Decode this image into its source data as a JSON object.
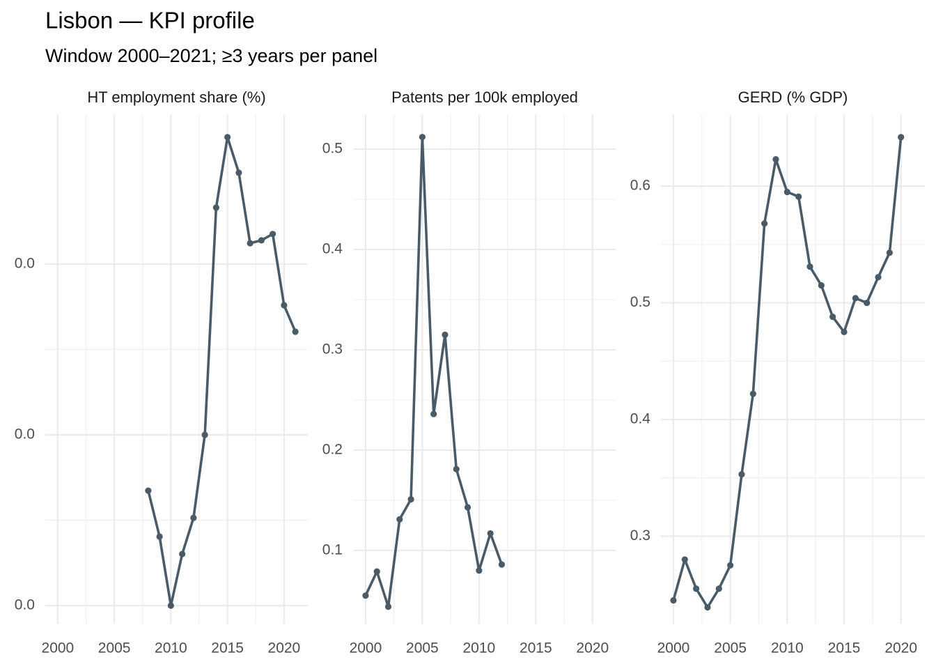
{
  "title": "Lisbon — KPI profile",
  "subtitle": "Window 2000–2021; ≥3 years per panel",
  "chart_data": [
    {
      "type": "line",
      "title": "HT employment share (%)",
      "x": [
        2008,
        2009,
        2010,
        2011,
        2012,
        2013,
        2014,
        2015,
        2016,
        2017,
        2018,
        2019,
        2020,
        2021
      ],
      "values": [
        0.01673,
        0.01404,
        0.01,
        0.01302,
        0.01514,
        0.02,
        0.03331,
        0.03743,
        0.03535,
        0.03122,
        0.03139,
        0.03176,
        0.02759,
        0.02604
      ],
      "color": "#4a5a66",
      "xlim": [
        1998.9,
        2022.1
      ],
      "xticks": [
        2000,
        2005,
        2010,
        2015,
        2020
      ],
      "ylim": [
        0.00894,
        0.03873
      ],
      "yticks": [
        {
          "value": 0.01,
          "label": "0.0"
        },
        {
          "value": 0.02,
          "label": "0.0"
        },
        {
          "value": 0.03,
          "label": "0.0"
        }
      ],
      "grid": true
    },
    {
      "type": "line",
      "title": "Patents per 100k employed",
      "x": [
        2000,
        2001,
        2002,
        2003,
        2004,
        2005,
        2006,
        2007,
        2008,
        2009,
        2010,
        2011,
        2012
      ],
      "values": [
        0.055,
        0.079,
        0.044,
        0.131,
        0.151,
        0.512,
        0.236,
        0.315,
        0.181,
        0.143,
        0.08,
        0.117,
        0.086
      ],
      "color": "#4a5a66",
      "xlim": [
        1998.9,
        2022.1
      ],
      "xticks": [
        2000,
        2005,
        2010,
        2015,
        2020
      ],
      "ylim": [
        0.027,
        0.534
      ],
      "yticks": [
        0.1,
        0.2,
        0.3,
        0.4,
        0.5
      ],
      "grid": true
    },
    {
      "type": "line",
      "title": "GERD (% GDP)",
      "x": [
        2000,
        2001,
        2002,
        2003,
        2004,
        2005,
        2006,
        2007,
        2008,
        2009,
        2010,
        2011,
        2012,
        2013,
        2014,
        2015,
        2016,
        2017,
        2018,
        2019,
        2020
      ],
      "values": [
        0.245,
        0.28,
        0.255,
        0.239,
        0.255,
        0.275,
        0.353,
        0.422,
        0.568,
        0.623,
        0.595,
        0.591,
        0.531,
        0.515,
        0.488,
        0.475,
        0.504,
        0.5,
        0.522,
        0.543,
        0.642
      ],
      "color": "#4a5a66",
      "xlim": [
        1998.9,
        2022.1
      ],
      "xticks": [
        2000,
        2005,
        2010,
        2015,
        2020
      ],
      "ylim": [
        0.225,
        0.661
      ],
      "yticks": [
        0.3,
        0.4,
        0.5,
        0.6
      ],
      "grid": true
    }
  ]
}
